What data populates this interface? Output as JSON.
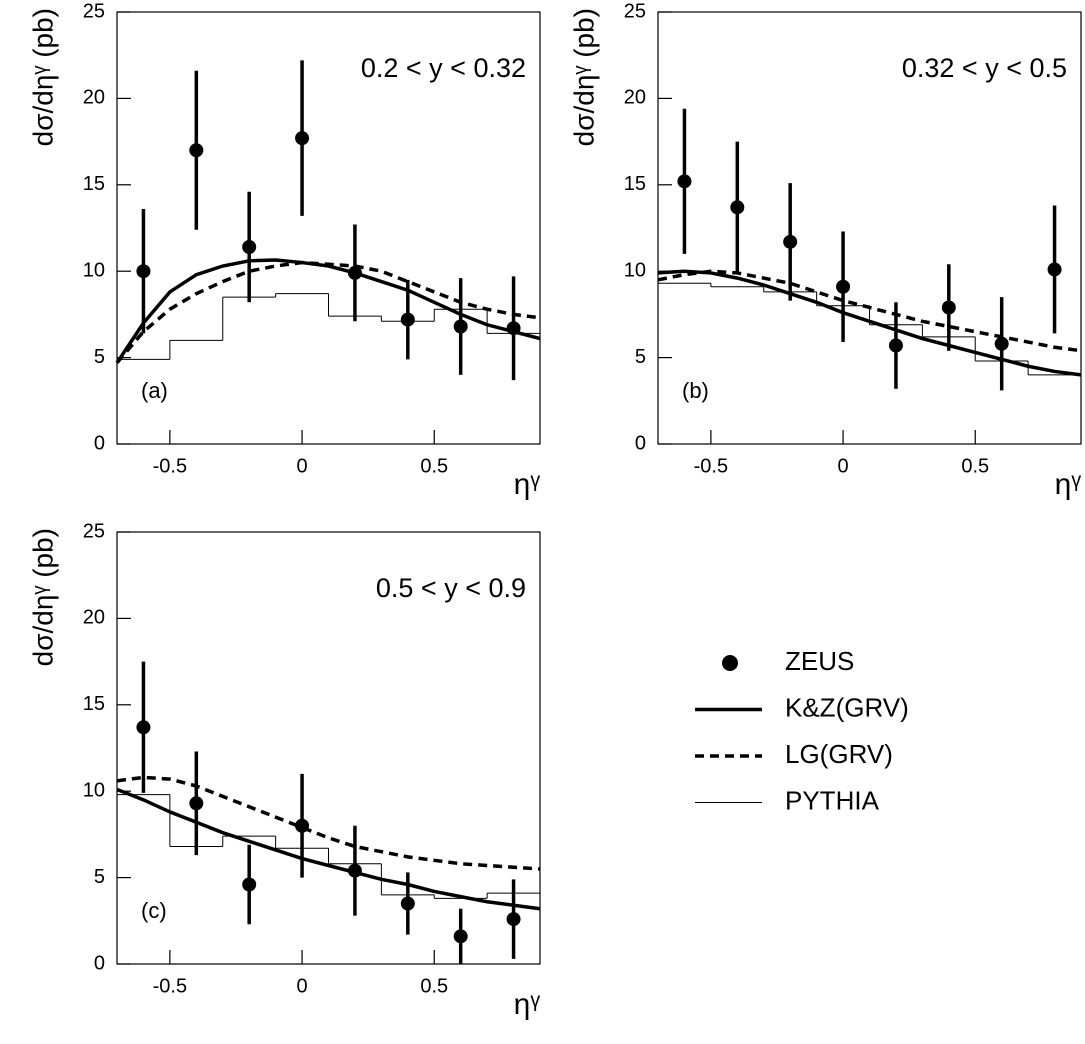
{
  "chart_data": [
    {
      "type": "line",
      "title": "0.2 < y < 0.32",
      "label": "(a)",
      "xlabel": "ηᵞ",
      "ylabel": "dσ/dηᵞ (pb)",
      "xlim": [
        -0.7,
        0.9
      ],
      "ylim": [
        0,
        25
      ],
      "xticks": [
        -0.5,
        0,
        0.5
      ],
      "yticks": [
        0,
        5,
        10,
        15,
        20,
        25
      ],
      "series": [
        {
          "style": "points",
          "color": "#000000",
          "x": [
            -0.6,
            -0.4,
            -0.2,
            0,
            0.2,
            0.4,
            0.6,
            0.8
          ],
          "values": [
            10.0,
            17.0,
            11.4,
            17.7,
            9.9,
            7.2,
            6.8,
            6.7
          ],
          "errors": [
            3.6,
            4.6,
            3.2,
            4.5,
            2.8,
            2.3,
            2.8,
            3.0
          ]
        },
        {
          "style": "solid",
          "color": "#000000",
          "x": [
            -0.7,
            -0.6,
            -0.5,
            -0.4,
            -0.3,
            -0.2,
            -0.1,
            0,
            0.1,
            0.2,
            0.3,
            0.4,
            0.5,
            0.6,
            0.7,
            0.8,
            0.9
          ],
          "values": [
            4.7,
            7.0,
            8.8,
            9.8,
            10.3,
            10.6,
            10.65,
            10.5,
            10.3,
            9.9,
            9.4,
            8.9,
            8.2,
            7.5,
            6.9,
            6.5,
            6.1
          ]
        },
        {
          "style": "dashed",
          "color": "#000000",
          "x": [
            -0.7,
            -0.6,
            -0.5,
            -0.4,
            -0.3,
            -0.2,
            -0.1,
            0,
            0.1,
            0.2,
            0.3,
            0.4,
            0.5,
            0.6,
            0.7,
            0.8,
            0.9
          ],
          "values": [
            4.7,
            6.5,
            7.8,
            8.7,
            9.4,
            10.0,
            10.3,
            10.5,
            10.4,
            10.3,
            10.0,
            9.4,
            8.8,
            8.2,
            7.8,
            7.5,
            7.3
          ]
        },
        {
          "style": "step",
          "color": "#000000",
          "bins": [
            -0.7,
            -0.5,
            -0.3,
            -0.1,
            0.1,
            0.3,
            0.5,
            0.7,
            0.9
          ],
          "values": [
            4.9,
            6.0,
            8.5,
            8.7,
            7.4,
            7.1,
            7.8,
            6.4
          ]
        }
      ]
    },
    {
      "type": "line",
      "title": "0.32 < y < 0.5",
      "label": "(b)",
      "xlabel": "ηᵞ",
      "ylabel": "dσ/dηᵞ (pb)",
      "xlim": [
        -0.7,
        0.9
      ],
      "ylim": [
        0,
        25
      ],
      "xticks": [
        -0.5,
        0,
        0.5
      ],
      "yticks": [
        0,
        5,
        10,
        15,
        20,
        25
      ],
      "series": [
        {
          "style": "points",
          "color": "#000000",
          "x": [
            -0.6,
            -0.4,
            -0.2,
            0,
            0.2,
            0.4,
            0.6,
            0.8
          ],
          "values": [
            15.2,
            13.7,
            11.7,
            9.1,
            5.7,
            7.9,
            5.8,
            10.1
          ],
          "errors": [
            4.2,
            3.8,
            3.4,
            3.2,
            2.5,
            2.5,
            2.7,
            3.7
          ]
        },
        {
          "style": "solid",
          "color": "#000000",
          "x": [
            -0.7,
            -0.6,
            -0.5,
            -0.4,
            -0.3,
            -0.2,
            -0.1,
            0,
            0.1,
            0.2,
            0.3,
            0.4,
            0.5,
            0.6,
            0.7,
            0.8,
            0.9
          ],
          "values": [
            9.9,
            10.0,
            9.9,
            9.6,
            9.2,
            8.7,
            8.2,
            7.6,
            7.1,
            6.6,
            6.1,
            5.7,
            5.3,
            4.9,
            4.5,
            4.2,
            4.0
          ]
        },
        {
          "style": "dashed",
          "color": "#000000",
          "x": [
            -0.7,
            -0.6,
            -0.5,
            -0.4,
            -0.3,
            -0.2,
            -0.1,
            0,
            0.1,
            0.2,
            0.3,
            0.4,
            0.5,
            0.6,
            0.7,
            0.8,
            0.9
          ],
          "values": [
            9.5,
            9.8,
            10.0,
            9.9,
            9.6,
            9.3,
            8.8,
            8.3,
            7.9,
            7.5,
            7.1,
            6.8,
            6.5,
            6.2,
            5.9,
            5.6,
            5.4
          ]
        },
        {
          "style": "step",
          "color": "#000000",
          "bins": [
            -0.7,
            -0.5,
            -0.3,
            -0.1,
            0.1,
            0.3,
            0.5,
            0.7,
            0.9
          ],
          "values": [
            9.3,
            9.1,
            8.8,
            8.0,
            6.9,
            6.2,
            4.8,
            4.0
          ]
        }
      ]
    },
    {
      "type": "line",
      "title": "0.5 < y < 0.9",
      "label": "(c)",
      "xlabel": "ηᵞ",
      "ylabel": "dσ/dηᵞ (pb)",
      "xlim": [
        -0.7,
        0.9
      ],
      "ylim": [
        0,
        25
      ],
      "xticks": [
        -0.5,
        0,
        0.5
      ],
      "yticks": [
        0,
        5,
        10,
        15,
        20,
        25
      ],
      "series": [
        {
          "name": "ZEUS",
          "style": "points",
          "color": "#000000",
          "x": [
            -0.6,
            -0.4,
            -0.2,
            0,
            0.2,
            0.4,
            0.6,
            0.8
          ],
          "values": [
            13.7,
            9.3,
            4.6,
            8.0,
            5.4,
            3.5,
            1.6,
            2.6
          ],
          "errors": [
            3.8,
            3.0,
            2.3,
            3.0,
            2.6,
            1.8,
            1.6,
            2.3
          ]
        },
        {
          "name": "K&Z(GRV)",
          "style": "solid",
          "color": "#000000",
          "x": [
            -0.7,
            -0.6,
            -0.5,
            -0.4,
            -0.3,
            -0.2,
            -0.1,
            0,
            0.1,
            0.2,
            0.3,
            0.4,
            0.5,
            0.6,
            0.7,
            0.8,
            0.9
          ],
          "values": [
            10.1,
            9.5,
            8.8,
            8.2,
            7.6,
            7.1,
            6.6,
            6.1,
            5.7,
            5.3,
            4.9,
            4.6,
            4.2,
            3.9,
            3.6,
            3.4,
            3.2
          ]
        },
        {
          "name": "LG(GRV)",
          "style": "dashed",
          "color": "#000000",
          "x": [
            -0.7,
            -0.6,
            -0.5,
            -0.4,
            -0.3,
            -0.2,
            -0.1,
            0,
            0.1,
            0.2,
            0.3,
            0.4,
            0.5,
            0.6,
            0.7,
            0.8,
            0.9
          ],
          "values": [
            10.6,
            10.8,
            10.7,
            10.3,
            9.7,
            9.1,
            8.5,
            7.9,
            7.3,
            6.8,
            6.5,
            6.2,
            6.0,
            5.8,
            5.7,
            5.6,
            5.5
          ]
        },
        {
          "name": "PYTHIA",
          "style": "step",
          "color": "#000000",
          "bins": [
            -0.7,
            -0.5,
            -0.3,
            -0.1,
            0.1,
            0.3,
            0.5,
            0.7,
            0.9
          ],
          "values": [
            9.8,
            6.8,
            7.4,
            6.7,
            5.8,
            4.0,
            3.8,
            4.1
          ]
        }
      ]
    }
  ]
}
